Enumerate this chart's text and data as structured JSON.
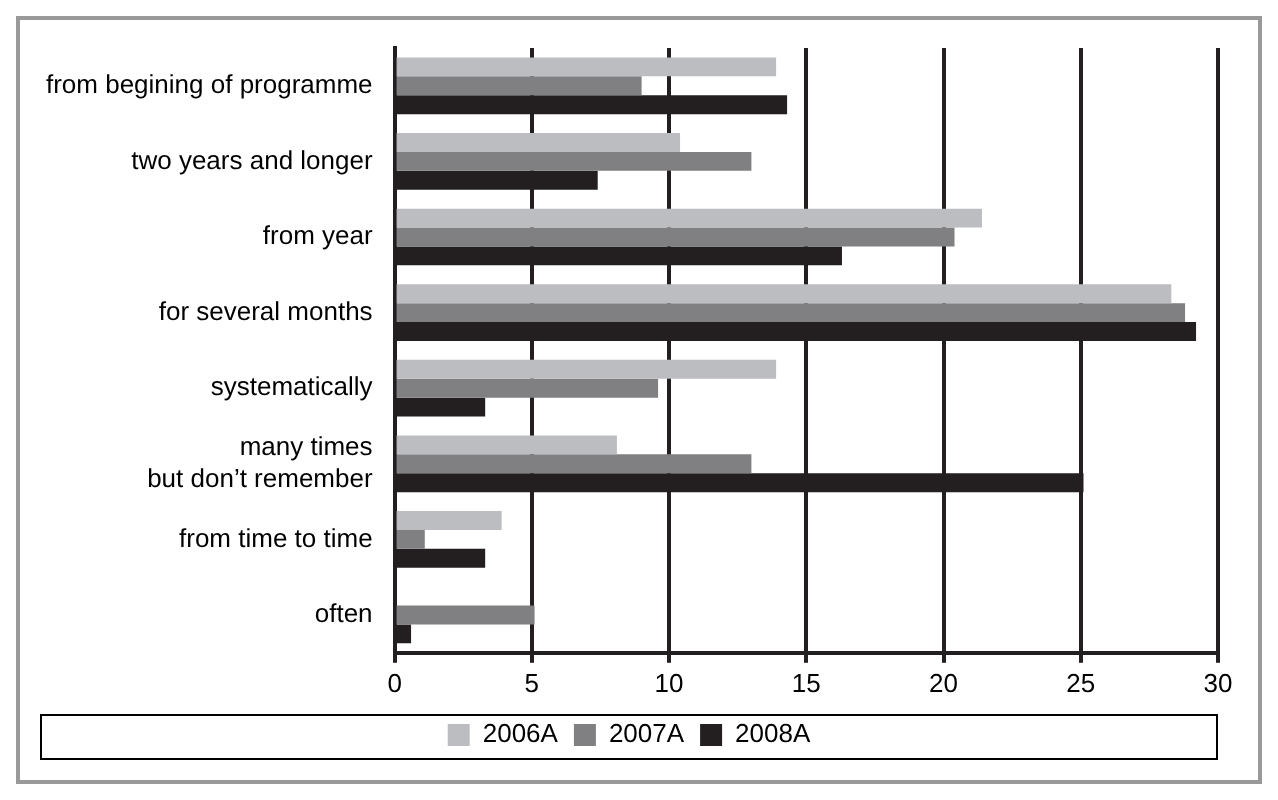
{
  "chart_data": {
    "type": "bar",
    "orientation": "horizontal",
    "categories": [
      "from begining of programme",
      "two years and longer",
      "from year",
      "for several months",
      "systematically",
      "many times\nbut don’t remember",
      "from time to time",
      "often"
    ],
    "series": [
      {
        "name": "2006A",
        "color": "#bcbdc0",
        "values": [
          13.9,
          10.4,
          21.4,
          28.3,
          13.9,
          8.1,
          3.9,
          null
        ]
      },
      {
        "name": "2007A",
        "color": "#808083",
        "values": [
          9.0,
          13.0,
          20.4,
          28.8,
          9.6,
          13.0,
          1.1,
          5.1
        ]
      },
      {
        "name": "2008A",
        "color": "#231f20",
        "values": [
          14.3,
          7.4,
          16.3,
          29.2,
          3.3,
          25.1,
          3.3,
          0.6
        ]
      }
    ],
    "xlim": [
      0,
      30
    ],
    "xticks": [
      0,
      5,
      10,
      15,
      20,
      25,
      30
    ],
    "grid": "x",
    "legend": "bottom"
  }
}
